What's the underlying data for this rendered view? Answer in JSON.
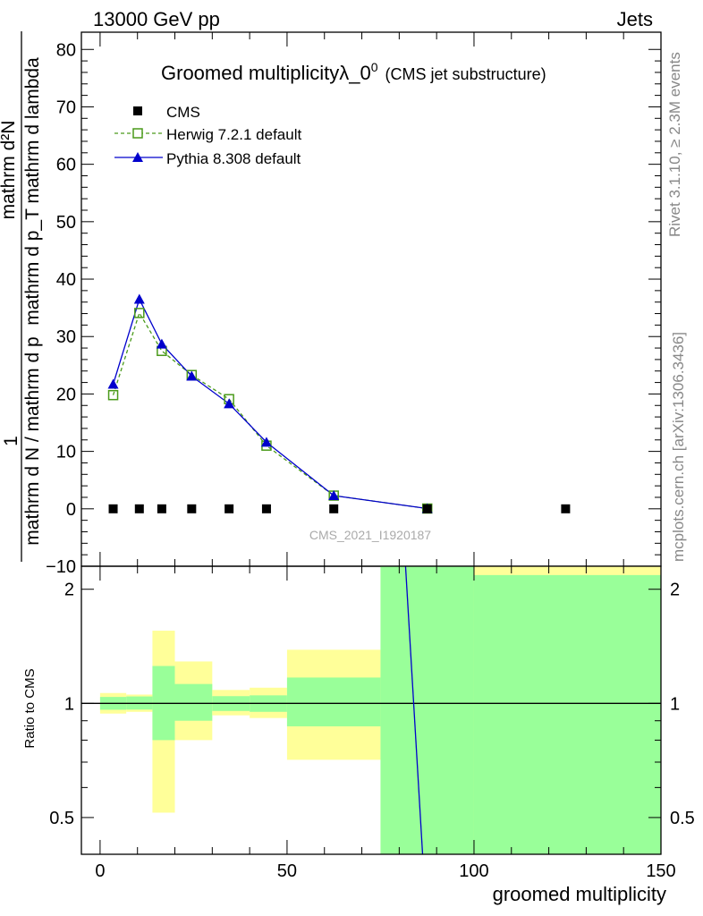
{
  "header": {
    "energy_label": "13000 GeV pp",
    "category_label": "Jets"
  },
  "side_labels": {
    "rivet": "Rivet 3.1.10, ≥ 2.3M events",
    "source": "mcplots.cern.ch [arXiv:1306.3436]"
  },
  "chart_data": [
    {
      "type": "line",
      "title": "Groomed multiplicityλ_0",
      "title_sup": "0",
      "subtitle": "(CMS jet substructure)",
      "watermark": "CMS_2021_I1920187",
      "ylabel_numerator": "mathrm d²N",
      "ylabel_numerator_prefix": "1",
      "ylabel_denominator": "mathrm d N / mathrm d p",
      "ylabel_full_upper": "mathrm d p_T mathrm d lambda",
      "xlim": [
        -5,
        150
      ],
      "ylim": [
        -10,
        83
      ],
      "yticks": [
        -10,
        0,
        10,
        20,
        30,
        40,
        50,
        60,
        70,
        80
      ],
      "legend_position": "top-left",
      "series": [
        {
          "name": "CMS",
          "marker": "square",
          "color": "#000000",
          "x": [
            3.5,
            10.5,
            16.5,
            24.5,
            34.5,
            44.5,
            62.5,
            87.5,
            124.5
          ],
          "y": [
            0,
            0,
            0,
            0,
            0,
            0,
            0,
            0,
            0
          ]
        },
        {
          "name": "Herwig 7.2.1 default",
          "marker": "open-square",
          "line": "dashed",
          "color": "#4a9a1a",
          "x": [
            3.5,
            10.5,
            16.5,
            24.5,
            34.5,
            44.5,
            62.5,
            87.5
          ],
          "y": [
            19.8,
            34.1,
            27.5,
            23.3,
            19.1,
            11.0,
            2.3,
            0.05
          ]
        },
        {
          "name": "Pythia 8.308 default",
          "marker": "triangle",
          "line": "solid",
          "color": "#0000cc",
          "x": [
            3.5,
            10.5,
            16.5,
            24.5,
            34.5,
            44.5,
            62.5,
            87.5
          ],
          "y": [
            21.7,
            36.5,
            28.7,
            23.1,
            18.3,
            11.6,
            2.3,
            0.05
          ]
        }
      ]
    },
    {
      "type": "area",
      "ylabel": "Ratio to CMS",
      "xlabel": "groomed multiplicity",
      "xlim": [
        -5,
        150
      ],
      "ylim": [
        0.4,
        2.3
      ],
      "scale": "log",
      "yticks": [
        0.5,
        1,
        2
      ],
      "xticks": [
        0,
        50,
        100,
        150
      ],
      "bands": [
        {
          "x0": 0,
          "x1": 7,
          "green": [
            0.962,
            1.04
          ],
          "yellow": [
            0.94,
            1.065
          ]
        },
        {
          "x0": 7,
          "x1": 14,
          "green": [
            0.963,
            1.043
          ],
          "yellow": [
            0.95,
            1.055
          ]
        },
        {
          "x0": 14,
          "x1": 20,
          "green": [
            0.8,
            1.255
          ],
          "yellow": [
            0.515,
            1.555
          ]
        },
        {
          "x0": 20,
          "x1": 30,
          "green": [
            0.9,
            1.125
          ],
          "yellow": [
            0.8,
            1.29
          ]
        },
        {
          "x0": 30,
          "x1": 40,
          "green": [
            0.955,
            1.045
          ],
          "yellow": [
            0.93,
            1.085
          ]
        },
        {
          "x0": 40,
          "x1": 50,
          "green": [
            0.95,
            1.05
          ],
          "yellow": [
            0.915,
            1.1
          ]
        },
        {
          "x0": 50,
          "x1": 75,
          "green": [
            0.87,
            1.17
          ],
          "yellow": [
            0.71,
            1.385
          ]
        },
        {
          "x0": 75,
          "x1": 100,
          "green": [
            0.3,
            3.0
          ],
          "yellow": [
            0.3,
            3.0
          ]
        },
        {
          "x0": 100,
          "x1": 150,
          "green": [
            0.3,
            2.18
          ],
          "yellow": [
            0.3,
            3.0
          ]
        }
      ],
      "series": [
        {
          "name": "Pythia 8.308 default",
          "color": "#0000cc",
          "x": [
            81,
            87
          ],
          "y": [
            3.0,
            0.3
          ]
        }
      ]
    }
  ]
}
